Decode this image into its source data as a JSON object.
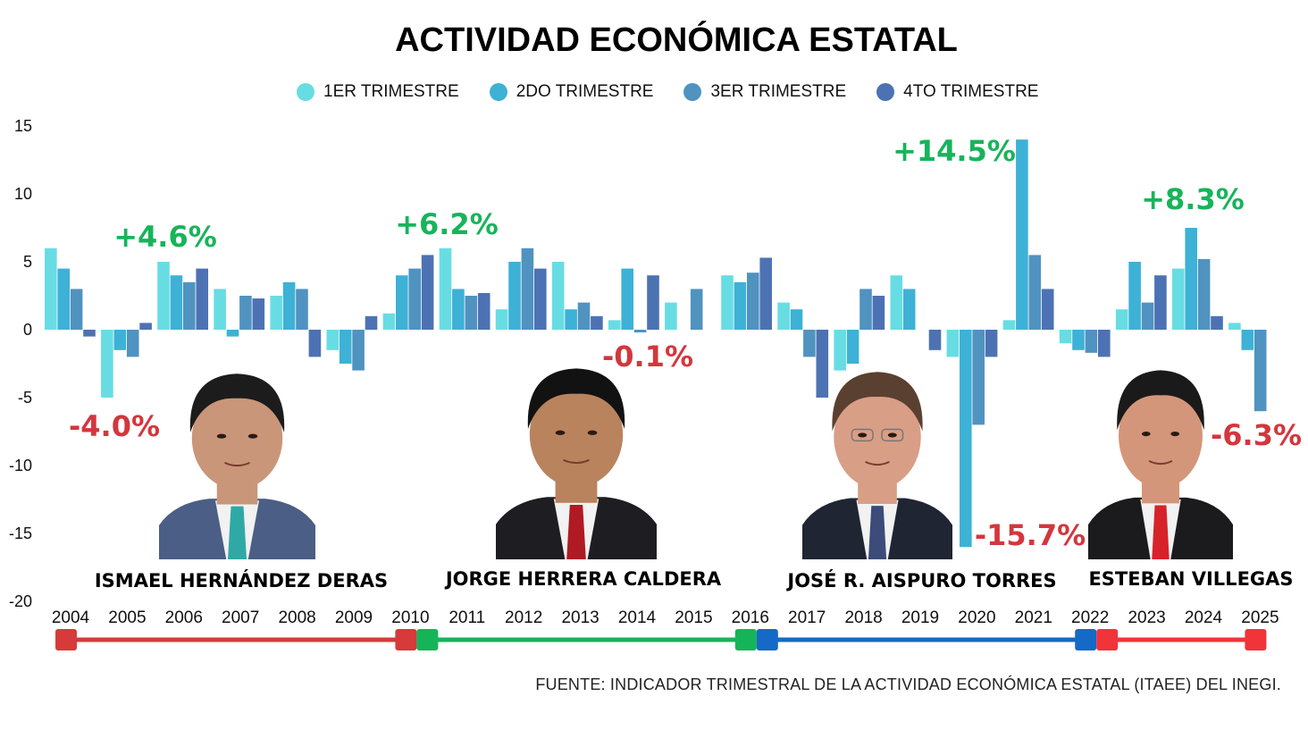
{
  "chart_data": {
    "type": "bar",
    "title": "ACTIVIDAD ECONÓMICA ESTATAL",
    "xlabel": "",
    "ylabel": "",
    "ylim": [
      -20,
      15
    ],
    "yticks": [
      15,
      10,
      5,
      0,
      -5,
      -10,
      -15,
      -20
    ],
    "grid": false,
    "legend_position": "top-center",
    "categories": [
      "2004",
      "2005",
      "2006",
      "2007",
      "2008",
      "2009",
      "2010",
      "2011",
      "2012",
      "2013",
      "2014",
      "2015",
      "2016",
      "2017",
      "2018",
      "2019",
      "2020",
      "2021",
      "2022",
      "2023",
      "2024",
      "2025"
    ],
    "series": [
      {
        "name": "1ER TRIMESTRE",
        "color": "#67DDE3",
        "values": [
          6.0,
          -5.0,
          5.0,
          3.0,
          2.5,
          -1.5,
          1.2,
          6.0,
          1.5,
          5.0,
          0.7,
          2.0,
          4.0,
          2.0,
          -3.0,
          4.0,
          -2.0,
          0.7,
          -1.0,
          1.5,
          4.5,
          0.5
        ]
      },
      {
        "name": "2DO TRIMESTRE",
        "color": "#3EB1D6",
        "values": [
          4.5,
          -1.5,
          4.0,
          -0.5,
          3.5,
          -2.5,
          4.0,
          3.0,
          5.0,
          1.5,
          4.5,
          null,
          3.5,
          1.5,
          -2.5,
          3.0,
          -16.0,
          14.0,
          -1.5,
          5.0,
          7.5,
          -1.5
        ]
      },
      {
        "name": "3ER TRIMESTRE",
        "color": "#5093C0",
        "values": [
          3.0,
          -2.0,
          3.5,
          2.5,
          3.0,
          -3.0,
          4.5,
          2.5,
          6.0,
          2.0,
          -0.2,
          3.0,
          4.2,
          -2.0,
          3.0,
          null,
          -7.0,
          5.5,
          -1.7,
          2.0,
          5.2,
          -6.0
        ]
      },
      {
        "name": "4TO TRIMESTRE",
        "color": "#4D72B3",
        "values": [
          -0.5,
          0.5,
          4.5,
          2.3,
          -2.0,
          1.0,
          5.5,
          2.7,
          4.5,
          1.0,
          4.0,
          null,
          5.3,
          -5.0,
          2.5,
          -1.5,
          -2.0,
          3.0,
          -2.0,
          4.0,
          1.0,
          null
        ]
      }
    ],
    "annotations": [
      {
        "text": "+4.6%",
        "type": "positive",
        "year": "2005"
      },
      {
        "text": "-4.0%",
        "type": "negative",
        "year": "2004"
      },
      {
        "text": "+6.2%",
        "type": "positive",
        "year": "2010"
      },
      {
        "text": "-0.1%",
        "type": "negative",
        "year": "2014"
      },
      {
        "text": "+14.5%",
        "type": "positive",
        "year": "2019"
      },
      {
        "text": "-15.7%",
        "type": "negative",
        "year": "2020"
      },
      {
        "text": "+8.3%",
        "type": "positive",
        "year": "2023"
      },
      {
        "text": "-6.3%",
        "type": "negative",
        "year": "2025"
      }
    ],
    "annotation_colors": {
      "positive": "#17B45A",
      "negative": "#D2373D"
    }
  },
  "governors": [
    {
      "name": "ISMAEL HERNÁNDEZ DERAS",
      "start": "2004",
      "end": "2010",
      "color": "#D63A3A"
    },
    {
      "name": "JORGE HERRERA CALDERA",
      "start": "2010",
      "end": "2016",
      "color": "#15B459"
    },
    {
      "name": "JOSÉ R. AISPURO TORRES",
      "start": "2016",
      "end": "2022",
      "color": "#1569C7"
    },
    {
      "name": "ESTEBAN VILLEGAS",
      "start": "2022",
      "end": "2025",
      "color": "#F0343A"
    }
  ],
  "source": "FUENTE: INDICADOR TRIMESTRAL DE LA ACTIVIDAD ECONÓMICA ESTATAL (ITAEE) DEL INEGI."
}
